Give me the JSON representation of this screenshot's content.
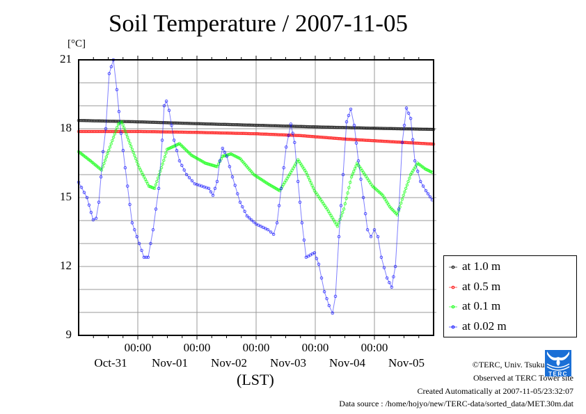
{
  "chart_data": {
    "type": "line",
    "title": "Soil Temperature / 2007-11-05",
    "ylabel": "[°C]",
    "xlabel": "(LST)",
    "ylim": [
      9,
      21
    ],
    "xlim_hours": [
      0,
      144
    ],
    "yticks": [
      "21",
      "18",
      "15",
      "12",
      "9"
    ],
    "ytick_values": [
      21,
      18,
      15,
      12,
      9
    ],
    "ygrid_step": 1,
    "xtick_time_labels": [
      "00:00",
      "00:00",
      "00:00",
      "00:00",
      "00:00"
    ],
    "xtick_hours": [
      24,
      48,
      72,
      96,
      120
    ],
    "xdate_labels": [
      "Oct-31",
      "Nov-01",
      "Nov-02",
      "Nov-03",
      "Nov-04",
      "Nov-05"
    ],
    "grid": true,
    "legend_position": "right-bottom-outside",
    "series": [
      {
        "name": "at 1.0 m",
        "color": "#000000",
        "points": [
          [
            0,
            18.36
          ],
          [
            24,
            18.3
          ],
          [
            48,
            18.22
          ],
          [
            72,
            18.15
          ],
          [
            96,
            18.08
          ],
          [
            120,
            18.02
          ],
          [
            144,
            17.97
          ]
        ]
      },
      {
        "name": "at 0.5 m",
        "color": "#ff0000",
        "points": [
          [
            0,
            17.88
          ],
          [
            24,
            17.88
          ],
          [
            48,
            17.84
          ],
          [
            72,
            17.78
          ],
          [
            90,
            17.7
          ],
          [
            108,
            17.55
          ],
          [
            126,
            17.44
          ],
          [
            144,
            17.33
          ]
        ]
      },
      {
        "name": "at 0.1 m",
        "color": "#00ff00",
        "points": [
          [
            0,
            17.0
          ],
          [
            4.8,
            16.6
          ],
          [
            9.3,
            16.2
          ],
          [
            12.7,
            17.2
          ],
          [
            16.1,
            18.2
          ],
          [
            17.5,
            18.3
          ],
          [
            20.3,
            17.5
          ],
          [
            24.6,
            16.3
          ],
          [
            28.5,
            15.5
          ],
          [
            30.8,
            15.4
          ],
          [
            33.6,
            16.3
          ],
          [
            35.9,
            17.1
          ],
          [
            40.9,
            17.35
          ],
          [
            45.7,
            16.85
          ],
          [
            51.4,
            16.5
          ],
          [
            56.2,
            16.35
          ],
          [
            58.4,
            16.8
          ],
          [
            61.8,
            16.9
          ],
          [
            65.5,
            16.7
          ],
          [
            71.1,
            16.0
          ],
          [
            76.8,
            15.6
          ],
          [
            81.6,
            15.3
          ],
          [
            86.1,
            16.1
          ],
          [
            89.0,
            16.65
          ],
          [
            92.3,
            16.1
          ],
          [
            95.7,
            15.3
          ],
          [
            100.8,
            14.5
          ],
          [
            105.0,
            13.75
          ],
          [
            107.6,
            14.5
          ],
          [
            110.7,
            15.9
          ],
          [
            113.0,
            16.5
          ],
          [
            115.5,
            16.1
          ],
          [
            119.2,
            15.5
          ],
          [
            123.4,
            15.1
          ],
          [
            126.2,
            14.6
          ],
          [
            129.3,
            14.25
          ],
          [
            131.8,
            15.1
          ],
          [
            134.7,
            16.0
          ],
          [
            137.5,
            16.5
          ],
          [
            140.6,
            16.25
          ],
          [
            143.4,
            16.1
          ]
        ]
      },
      {
        "name": "at 0.02 m",
        "color": "#0000ff",
        "points": [
          [
            0,
            15.67
          ],
          [
            3.4,
            15.0
          ],
          [
            5.9,
            14.03
          ],
          [
            7.1,
            14.1
          ],
          [
            8.2,
            14.8
          ],
          [
            9.9,
            17.0
          ],
          [
            11.0,
            18.0
          ],
          [
            12.4,
            20.4
          ],
          [
            14.1,
            21.0
          ],
          [
            15.5,
            19.7
          ],
          [
            17.2,
            17.8
          ],
          [
            18.9,
            16.3
          ],
          [
            21.7,
            13.9
          ],
          [
            24.6,
            13.0
          ],
          [
            26.5,
            12.4
          ],
          [
            28.2,
            12.4
          ],
          [
            30.2,
            13.6
          ],
          [
            32.5,
            15.4
          ],
          [
            33.9,
            17.5
          ],
          [
            34.7,
            19.0
          ],
          [
            35.6,
            19.2
          ],
          [
            36.7,
            18.8
          ],
          [
            38.7,
            17.5
          ],
          [
            40.9,
            16.6
          ],
          [
            43.8,
            16.0
          ],
          [
            47.1,
            15.6
          ],
          [
            52.8,
            15.4
          ],
          [
            54.5,
            15.1
          ],
          [
            56.2,
            15.7
          ],
          [
            57.3,
            16.6
          ],
          [
            58.4,
            17.15
          ],
          [
            60.1,
            16.8
          ],
          [
            62.4,
            15.9
          ],
          [
            65.5,
            14.8
          ],
          [
            68.3,
            14.2
          ],
          [
            72.0,
            13.85
          ],
          [
            76.8,
            13.6
          ],
          [
            79.1,
            13.4
          ],
          [
            80.5,
            13.9
          ],
          [
            82.2,
            15.4
          ],
          [
            84.2,
            17.2
          ],
          [
            86.1,
            18.2
          ],
          [
            87.6,
            17.4
          ],
          [
            89.0,
            15.7
          ],
          [
            90.6,
            13.9
          ],
          [
            92.3,
            12.4
          ],
          [
            94.0,
            12.5
          ],
          [
            95.7,
            12.6
          ],
          [
            97.4,
            12.1
          ],
          [
            99.7,
            10.9
          ],
          [
            101.6,
            10.3
          ],
          [
            103.0,
            9.97
          ],
          [
            104.2,
            10.7
          ],
          [
            105.6,
            13.3
          ],
          [
            107.3,
            16.0
          ],
          [
            108.7,
            18.3
          ],
          [
            110.4,
            18.85
          ],
          [
            111.8,
            18.15
          ],
          [
            113.5,
            16.6
          ],
          [
            115.5,
            15.0
          ],
          [
            117.2,
            13.6
          ],
          [
            118.6,
            13.3
          ],
          [
            120.0,
            13.6
          ],
          [
            121.4,
            13.3
          ],
          [
            122.8,
            12.4
          ],
          [
            125.1,
            11.5
          ],
          [
            127.0,
            11.1
          ],
          [
            128.5,
            12.0
          ],
          [
            129.9,
            14.5
          ],
          [
            131.3,
            17.4
          ],
          [
            133.0,
            18.9
          ],
          [
            134.7,
            18.45
          ],
          [
            136.4,
            16.6
          ],
          [
            138.7,
            15.7
          ],
          [
            140.9,
            15.3
          ],
          [
            143.4,
            14.9
          ]
        ]
      }
    ]
  },
  "credits": {
    "copyright": "©TERC, Univ. Tsukuba",
    "observed": "Observed at TERC Tower site",
    "created": "Created Automatically at 2007-11-05/23:32:07",
    "source": "Data source : /home/hojyo/new/TERC-data/sorted_data/MET.30m.dat",
    "logo_text": "TERC"
  }
}
